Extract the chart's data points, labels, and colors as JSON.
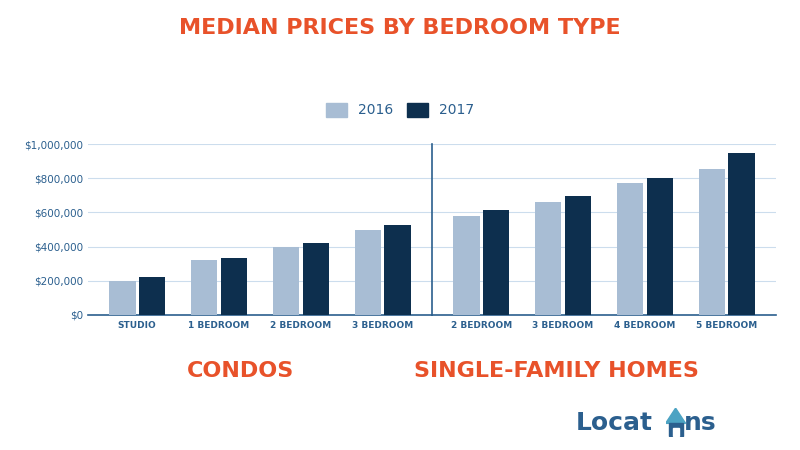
{
  "title": "MEDIAN PRICES BY BEDROOM TYPE",
  "title_color": "#E8522A",
  "background_color": "#FFFFFF",
  "bar_color_2016": "#A8BDD4",
  "bar_color_2017": "#0D2F4E",
  "legend_labels": [
    "2016",
    "2017"
  ],
  "condos": {
    "categories": [
      "STUDIO",
      "1 BEDROOM",
      "2 BEDROOM",
      "3 BEDROOM"
    ],
    "values_2016": [
      200000,
      320000,
      400000,
      500000
    ],
    "values_2017": [
      220000,
      335000,
      420000,
      525000
    ],
    "label": "CONDOS"
  },
  "sfh": {
    "categories": [
      "2 BEDROOM",
      "3 BEDROOM",
      "4 BEDROOM",
      "5 BEDROOM"
    ],
    "values_2016": [
      580000,
      660000,
      770000,
      855000
    ],
    "values_2017": [
      615000,
      695000,
      800000,
      945000
    ],
    "label": "SINGLE-FAMILY HOMES"
  },
  "ylim": [
    0,
    1000000
  ],
  "yticks": [
    0,
    200000,
    400000,
    600000,
    800000,
    1000000
  ],
  "section_label_color": "#E8522A",
  "section_label_fontsize": 16,
  "axis_label_color": "#2B5F8E",
  "grid_color": "#CCDDED",
  "divider_color": "#2B5F8E",
  "bar_width": 0.32,
  "bar_gap": 0.04
}
